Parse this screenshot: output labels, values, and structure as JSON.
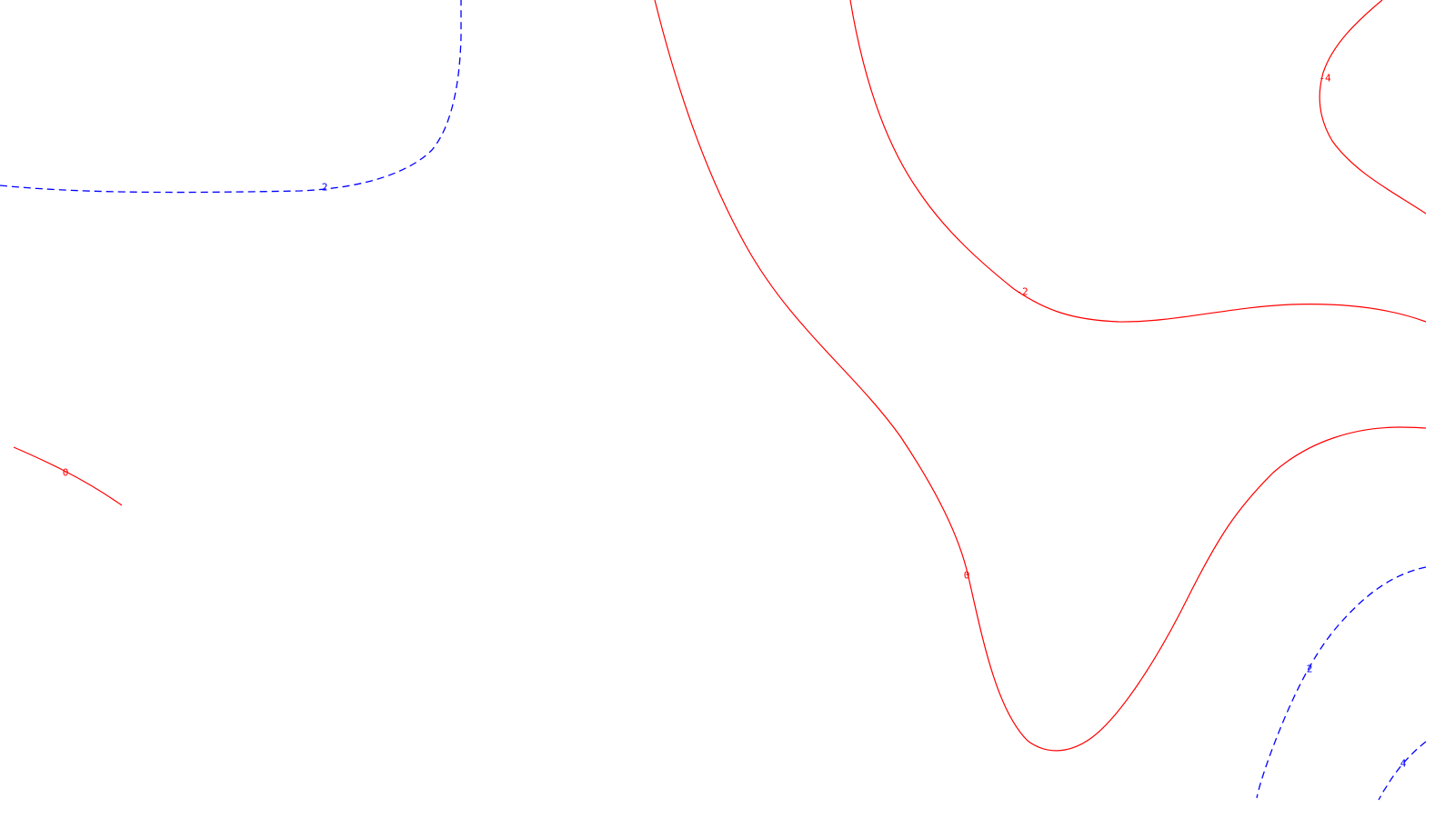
{
  "colors": {
    "background": "#ffffff",
    "negative": "#ff0000",
    "positive": "#0000ff"
  },
  "contours": [
    {
      "id": "neg2-top-right",
      "level": "-2",
      "label": "-2",
      "style": "solid",
      "color": "#ff0000"
    },
    {
      "id": "neg4-corner",
      "level": "-4",
      "label": "-4",
      "style": "solid",
      "color": "#ff0000"
    },
    {
      "id": "zero-main",
      "level": "0",
      "label": "0",
      "style": "solid",
      "color": "#ff0000"
    },
    {
      "id": "zero-left",
      "level": "0",
      "label": "0",
      "style": "solid",
      "color": "#ff0000"
    },
    {
      "id": "pos2-top-left",
      "level": "2",
      "label": "2",
      "style": "dashed",
      "color": "#0000ff"
    },
    {
      "id": "pos2-bottom-right",
      "level": "2",
      "label": "2",
      "style": "dashed",
      "color": "#0000ff"
    },
    {
      "id": "pos4-bottom-right",
      "level": "4",
      "label": "4",
      "style": "dashed",
      "color": "#0000ff"
    }
  ]
}
